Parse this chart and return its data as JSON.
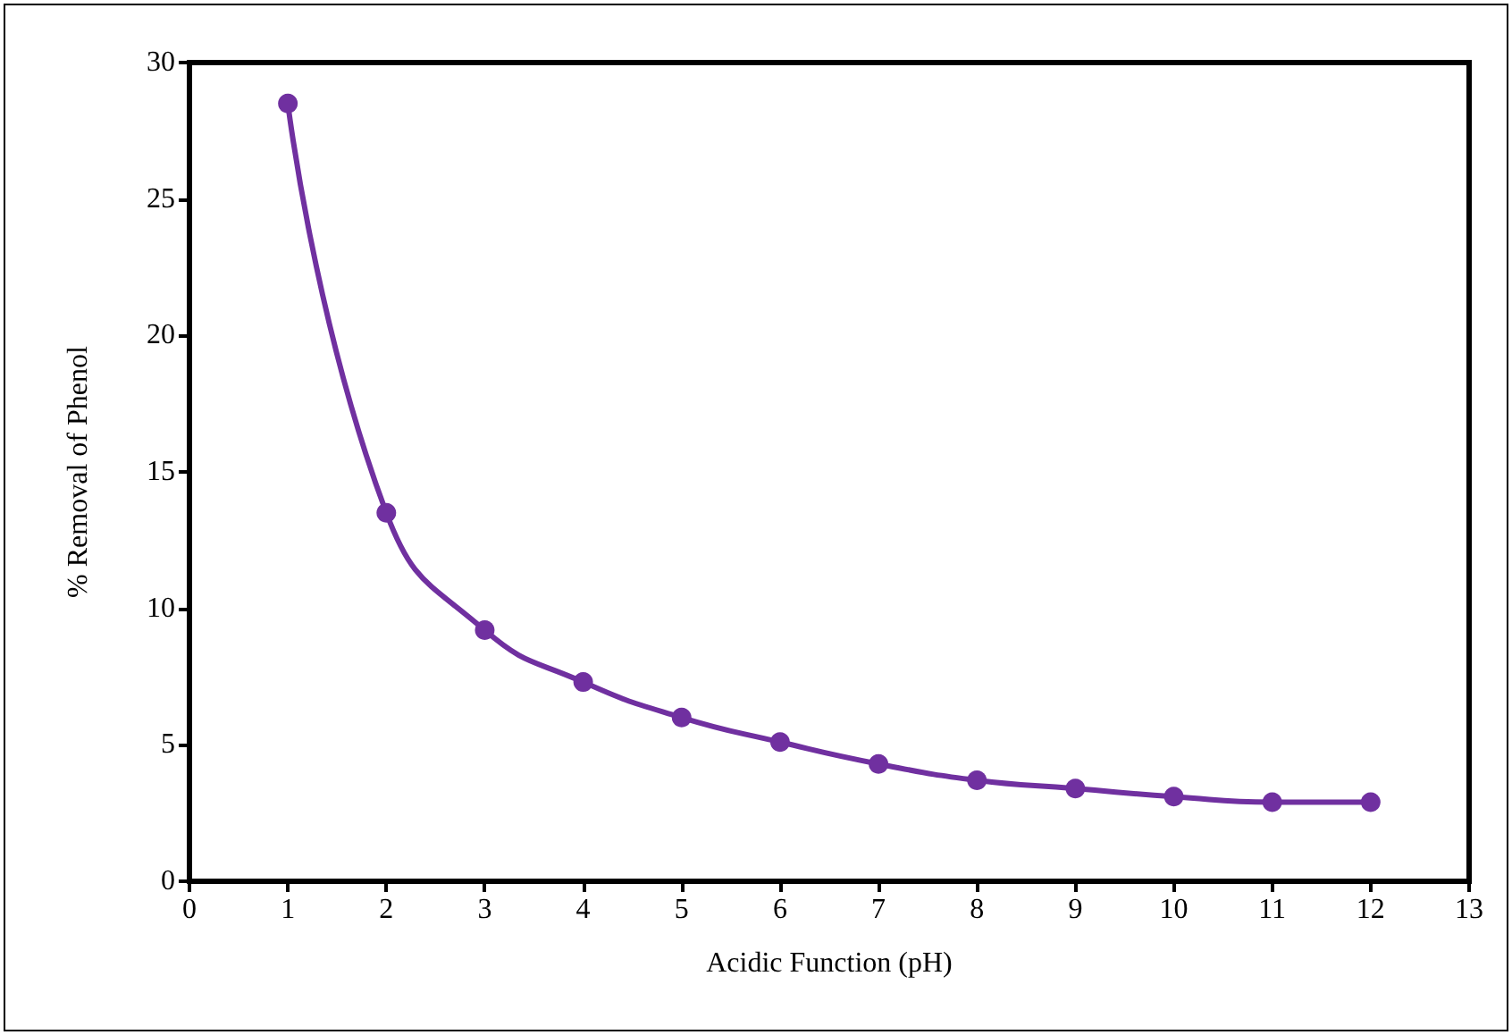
{
  "chart_data": {
    "type": "line",
    "xlabel": "Acidic Function (pH)",
    "ylabel": "% Removal of Phenol",
    "x": [
      1,
      2,
      3,
      4,
      5,
      6,
      7,
      8,
      9,
      10,
      11,
      12
    ],
    "series": [
      {
        "color": "#7030a0",
        "values": [
          28.5,
          13.5,
          9.2,
          7.3,
          6.0,
          5.1,
          4.3,
          3.7,
          3.4,
          3.1,
          2.9,
          2.9
        ]
      }
    ],
    "xlim": [
      0,
      13
    ],
    "xticks": [
      0,
      1,
      2,
      3,
      4,
      5,
      6,
      7,
      8,
      9,
      10,
      11,
      12,
      13
    ],
    "ylim": [
      0,
      30
    ],
    "yticks": [
      0,
      5,
      10,
      15,
      20,
      25,
      30
    ],
    "grid": false,
    "marker": "circle",
    "line_style": "solid"
  }
}
